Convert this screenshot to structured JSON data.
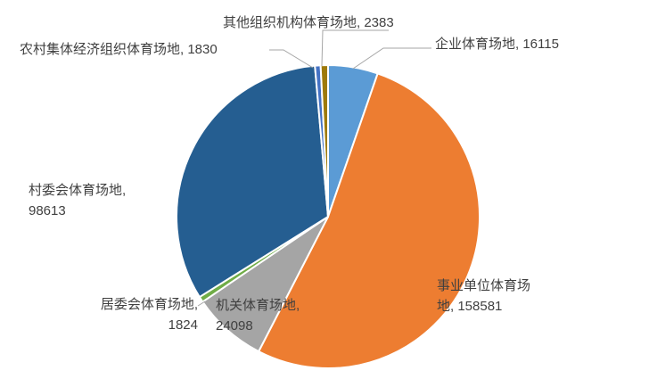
{
  "chart_data": {
    "type": "pie",
    "title": "",
    "slices": [
      {
        "name": "企业体育场地",
        "value": 16115,
        "color": "#5b9bd5"
      },
      {
        "name": "事业单位体育场地",
        "value": 158581,
        "color": "#ed7d31"
      },
      {
        "name": "机关体育场地",
        "value": 24098,
        "color": "#a5a5a5"
      },
      {
        "name": "居委会体育场地",
        "value": 1824,
        "color": "#70ad47"
      },
      {
        "name": "村委会体育场地",
        "value": 98613,
        "color": "#255e91"
      },
      {
        "name": "农村集体经济组织体育场地",
        "value": 1830,
        "color": "#4472c4"
      },
      {
        "name": "其他组织机构体育场地",
        "value": 2383,
        "color": "#9e7a0b"
      }
    ],
    "labels": [
      {
        "lines": [
          "企业体育场地, 16115"
        ]
      },
      {
        "lines": [
          "事业单位体育场",
          "地, 158581"
        ]
      },
      {
        "lines": [
          "机关体育场地,",
          "24098"
        ]
      },
      {
        "lines": [
          "居委会体育场地,",
          "1824"
        ]
      },
      {
        "lines": [
          "村委会体育场地,",
          "98613"
        ]
      },
      {
        "lines": [
          "农村集体经济组织体育场地, 1830"
        ]
      },
      {
        "lines": [
          "其他组织机构体育场地, 2383"
        ]
      }
    ]
  }
}
